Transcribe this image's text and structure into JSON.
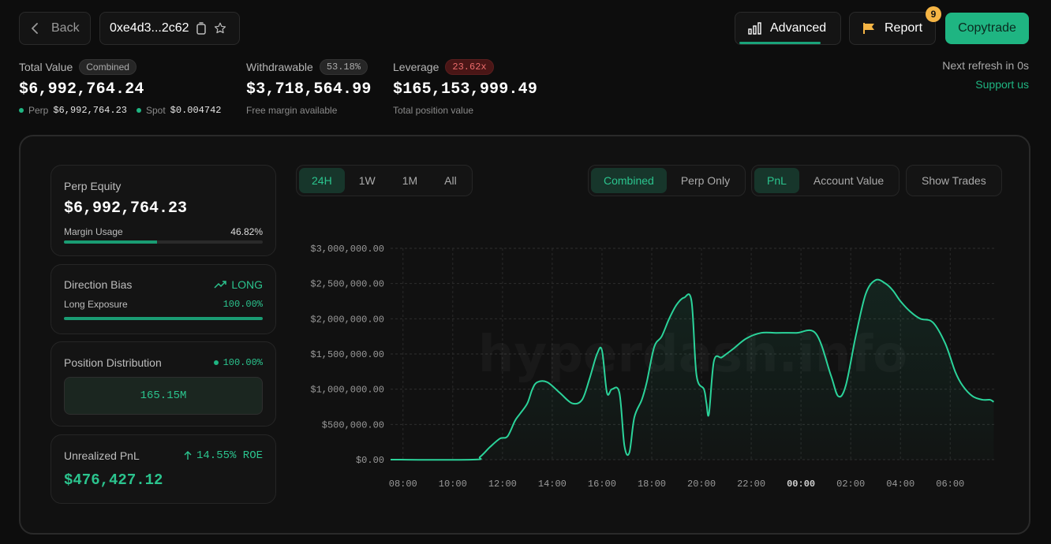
{
  "header": {
    "back_label": "Back",
    "address": "0xe4d3...2c62",
    "advanced_label": "Advanced",
    "report_label": "Report",
    "report_badge": "9",
    "copytrade_label": "Copytrade"
  },
  "stats": {
    "total_value": {
      "label": "Total Value",
      "pill": "Combined",
      "value": "$6,992,764.24",
      "perp_label": "Perp",
      "perp_value": "$6,992,764.23",
      "spot_label": "Spot",
      "spot_value": "$0.004742"
    },
    "withdrawable": {
      "label": "Withdrawable",
      "pill": "53.18%",
      "value": "$3,718,564.99",
      "sub": "Free margin available"
    },
    "leverage": {
      "label": "Leverage",
      "pill": "23.62x",
      "value": "$165,153,999.49",
      "sub": "Total position value"
    },
    "refresh": "Next refresh in 0s",
    "support": "Support us"
  },
  "panels": {
    "perp_equity": {
      "title": "Perp Equity",
      "value": "$6,992,764.23",
      "margin_label": "Margin Usage",
      "margin_value": "46.82%",
      "margin_fraction": 0.4682
    },
    "direction": {
      "title": "Direction Bias",
      "bias": "LONG",
      "exposure_label": "Long Exposure",
      "exposure_value": "100.00%",
      "exposure_fraction": 1.0
    },
    "distribution": {
      "title": "Position Distribution",
      "percent": "100.00%",
      "box_value": "165.15M"
    },
    "unrealized": {
      "title": "Unrealized PnL",
      "roe": "14.55% ROE",
      "value": "$476,427.12"
    }
  },
  "toggles": {
    "range": [
      {
        "label": "24H",
        "active": true
      },
      {
        "label": "1W",
        "active": false
      },
      {
        "label": "1M",
        "active": false
      },
      {
        "label": "All",
        "active": false
      }
    ],
    "mode": [
      {
        "label": "Combined",
        "active": true
      },
      {
        "label": "Perp Only",
        "active": false
      }
    ],
    "metric": [
      {
        "label": "PnL",
        "active": true
      },
      {
        "label": "Account Value",
        "active": false
      }
    ],
    "show_trades": "Show Trades"
  },
  "chart_data": {
    "type": "area",
    "watermark": "hyperdash.info",
    "xlabel": "",
    "ylabel": "",
    "ylim": [
      0,
      3000000
    ],
    "xlim": [
      7.5,
      31.8
    ],
    "ytick_labels": [
      "$3,000,000.00",
      "$2,500,000.00",
      "$2,000,000.00",
      "$1,500,000.00",
      "$1,000,000.00",
      "$500,000.00",
      "$0.00"
    ],
    "ytick_values": [
      3000000,
      2500000,
      2000000,
      1500000,
      1000000,
      500000,
      0
    ],
    "xtick_labels": [
      "08:00",
      "10:00",
      "12:00",
      "14:00",
      "16:00",
      "18:00",
      "20:00",
      "22:00",
      "00:00",
      "02:00",
      "04:00",
      "06:00"
    ],
    "xtick_values": [
      8,
      10,
      12,
      14,
      16,
      18,
      20,
      22,
      24,
      26,
      28,
      30
    ],
    "xtick_bold": [
      false,
      false,
      false,
      false,
      false,
      false,
      false,
      false,
      true,
      false,
      false,
      false
    ],
    "series": [
      {
        "color": "#2bd39a",
        "x": [
          7.5,
          10.8,
          11.1,
          11.5,
          11.9,
          12.2,
          12.5,
          12.7,
          13.0,
          13.2,
          13.4,
          13.8,
          14.3,
          14.8,
          15.2,
          15.5,
          15.8,
          16.0,
          16.2,
          16.4,
          16.7,
          16.9,
          17.1,
          17.3,
          17.6,
          17.8,
          18.1,
          18.4,
          18.7,
          19.0,
          19.3,
          19.6,
          19.8,
          20.1,
          20.2,
          20.3,
          20.5,
          20.8,
          21.0,
          21.3,
          21.8,
          22.4,
          23.0,
          23.8,
          24.6,
          25.2,
          25.5,
          25.8,
          26.2,
          26.6,
          27.0,
          27.4,
          27.7,
          28.0,
          28.4,
          28.8,
          29.3,
          29.8,
          30.2,
          30.5,
          30.9,
          31.3,
          31.6,
          31.75
        ],
        "y": [
          0,
          0,
          40000,
          180000,
          300000,
          330000,
          550000,
          650000,
          800000,
          1000000,
          1100000,
          1100000,
          950000,
          800000,
          850000,
          1150000,
          1500000,
          1550000,
          950000,
          1000000,
          950000,
          200000,
          100000,
          600000,
          850000,
          1100000,
          1600000,
          1750000,
          2000000,
          2200000,
          2300000,
          2250000,
          1200000,
          1000000,
          800000,
          650000,
          1400000,
          1450000,
          1500000,
          1580000,
          1720000,
          1800000,
          1800000,
          1800000,
          1790000,
          1200000,
          900000,
          1050000,
          1750000,
          2350000,
          2550000,
          2500000,
          2400000,
          2250000,
          2100000,
          2000000,
          1950000,
          1650000,
          1250000,
          1050000,
          900000,
          850000,
          850000,
          820000
        ]
      }
    ],
    "grid": true,
    "legend": "none"
  }
}
